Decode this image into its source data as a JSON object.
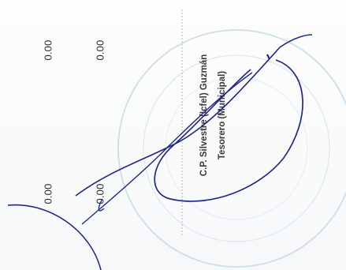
{
  "document": {
    "amounts": {
      "top_left": "0.00",
      "top_right": "0.00",
      "bottom_left": "0.00",
      "bottom_right": "0.00"
    },
    "signatory": {
      "name": "C.P. Silvestre (Icfel) Guzmán",
      "title": "Tesorero (Municipal)"
    },
    "stamp": {
      "shape": "circle",
      "color": "#c9dde6"
    },
    "signature": {
      "ink_color": "#1f2a8a"
    }
  }
}
